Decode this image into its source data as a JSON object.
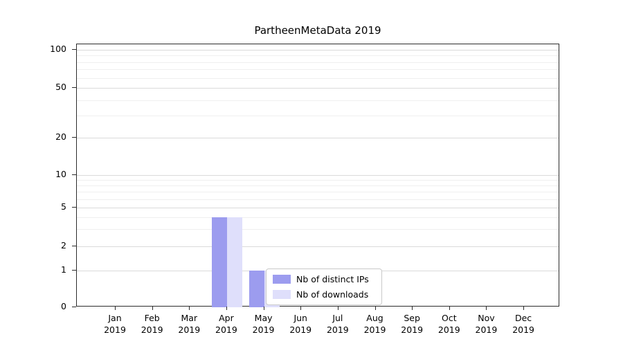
{
  "title": "PartheenMetaData 2019",
  "chart_data": {
    "type": "bar",
    "title": "PartheenMetaData 2019",
    "x_year": "2019",
    "categories": [
      "Jan",
      "Feb",
      "Mar",
      "Apr",
      "May",
      "Jun",
      "Jul",
      "Aug",
      "Sep",
      "Oct",
      "Nov",
      "Dec"
    ],
    "series": [
      {
        "name": "Nb of distinct IPs",
        "color": "#9c9cef",
        "values": [
          0,
          0,
          0,
          4,
          1,
          0,
          0,
          0,
          0,
          0,
          0,
          0
        ]
      },
      {
        "name": "Nb of downloads",
        "color": "#dfdffb",
        "values": [
          0,
          0,
          0,
          4,
          1,
          0,
          0,
          0,
          0,
          0,
          0,
          0
        ]
      }
    ],
    "yscale": "symlog",
    "ylim": [
      0,
      100
    ],
    "yticks": [
      0,
      1,
      2,
      5,
      10,
      20,
      50,
      100
    ],
    "minor_yticks": [
      3,
      4,
      6,
      7,
      8,
      9,
      30,
      40,
      60,
      70,
      80,
      90
    ],
    "grid": "horizontal",
    "legend_position": "inside-bottom-center"
  }
}
